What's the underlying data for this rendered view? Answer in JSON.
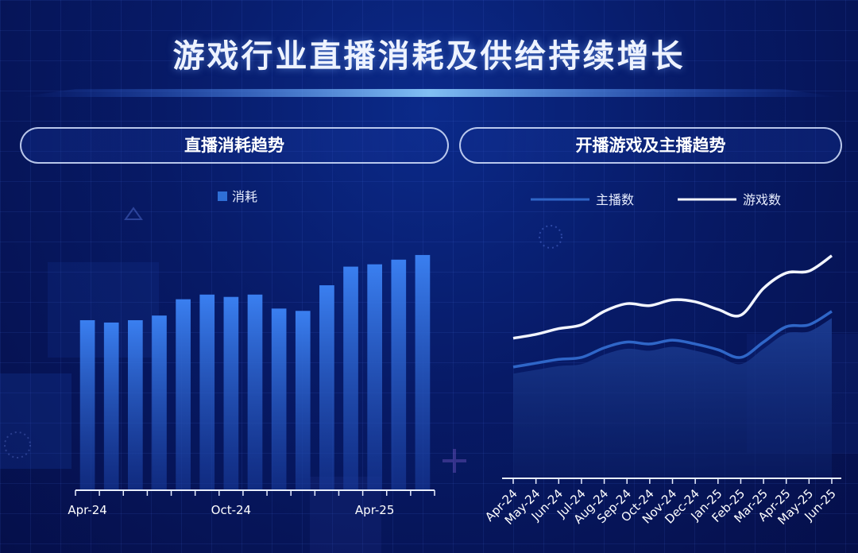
{
  "title": "游戏行业直播消耗及供给持续增长",
  "panels": {
    "left_header": "直播消耗趋势",
    "right_header": "开播游戏及主播趋势"
  },
  "colors": {
    "bar": "#2f6fd6",
    "anchor_line": "#2f66c8",
    "game_line": "#f2f5ff",
    "area": "#12307a"
  },
  "chart_data": [
    {
      "type": "bar",
      "legend": [
        "消耗"
      ],
      "categories": [
        "Apr-24",
        "May-24",
        "Jun-24",
        "Jul-24",
        "Aug-24",
        "Sep-24",
        "Oct-24",
        "Nov-24",
        "Dec-24",
        "Jan-25",
        "Feb-25",
        "Mar-25",
        "Apr-25",
        "May-25",
        "Jun-25"
      ],
      "tick_labels": {
        "Apr-24": "Apr-24",
        "Oct-24": "Oct-24",
        "Apr-25": "Apr-25"
      },
      "series": [
        {
          "name": "消耗",
          "values": [
            73,
            72,
            73,
            75,
            82,
            84,
            83,
            84,
            78,
            77,
            88,
            96,
            97,
            99,
            101
          ]
        }
      ],
      "ylim": [
        0,
        102
      ],
      "grid": false
    },
    {
      "type": "line",
      "legend": [
        "主播数",
        "游戏数"
      ],
      "categories": [
        "Apr-24",
        "May-24",
        "Jun-24",
        "Jul-24",
        "Aug-24",
        "Sep-24",
        "Oct-24",
        "Nov-24",
        "Dec-24",
        "Jan-25",
        "Feb-25",
        "Mar-25",
        "Apr-25",
        "May-25",
        "Jun-25"
      ],
      "series": [
        {
          "name": "主播数",
          "values": [
            58,
            60,
            62,
            63,
            68,
            71,
            70,
            72,
            70,
            67,
            63,
            71,
            79,
            80,
            87
          ]
        },
        {
          "name": "游戏数",
          "values": [
            73,
            75,
            78,
            80,
            87,
            91,
            90,
            93,
            92,
            88,
            85,
            99,
            107,
            108,
            116
          ]
        }
      ],
      "area_under": "主播数",
      "ylim": [
        0,
        130
      ],
      "grid": false
    }
  ]
}
